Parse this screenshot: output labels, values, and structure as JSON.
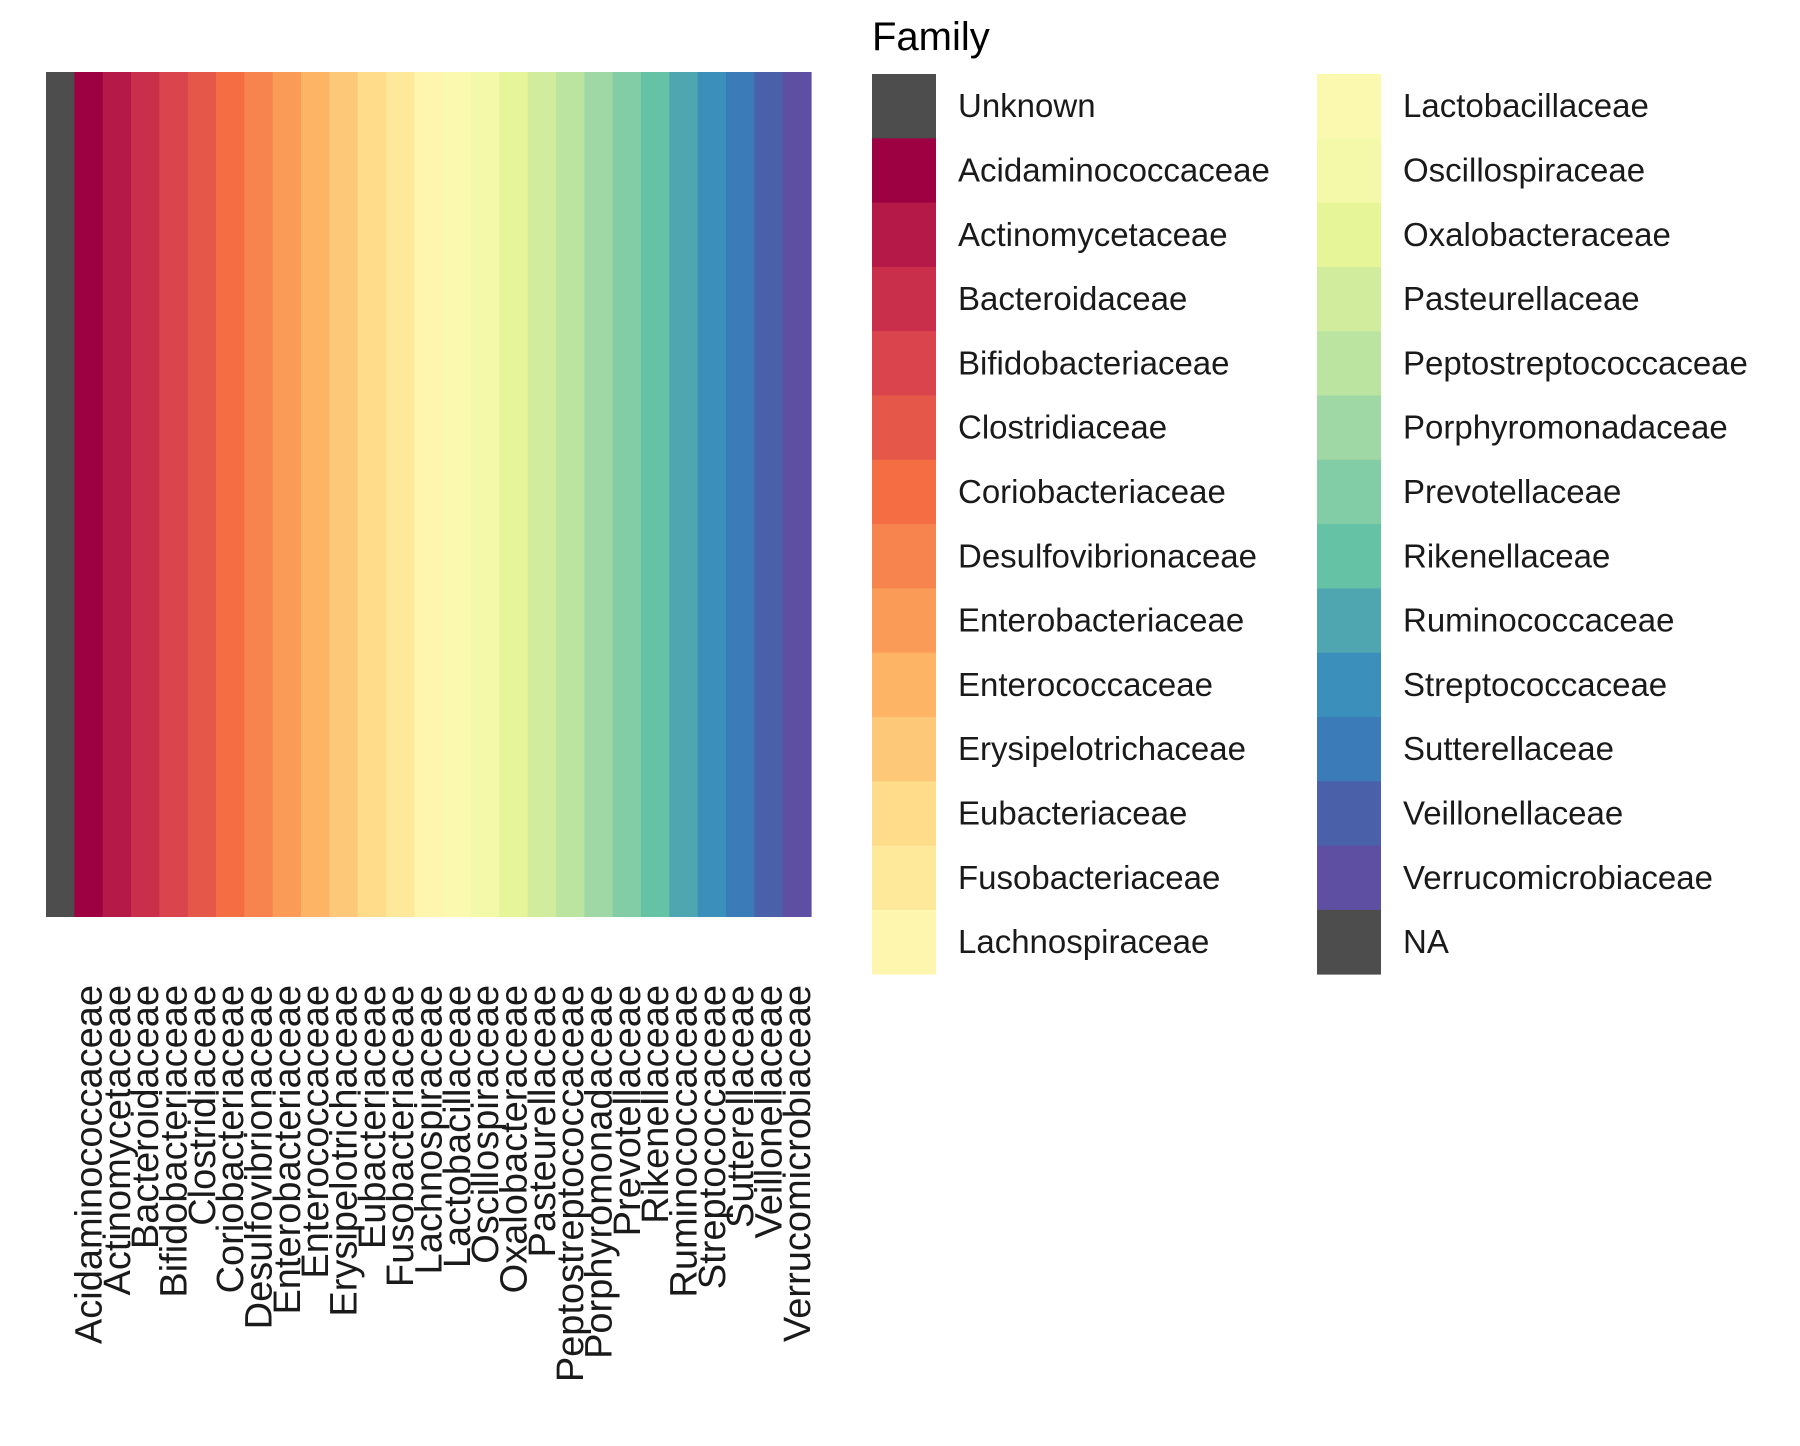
{
  "chart_data": {
    "type": "heatmap",
    "title": "",
    "xlabel": "",
    "ylabel": "",
    "grid": false,
    "legend_placement": "right",
    "legend_columns": 2,
    "x_tick_labels": [
      "Acidaminococcaceae",
      "Actinomycetaceae",
      "Bacteroidaceae",
      "Bifidobacteriaceae",
      "Clostridiaceae",
      "Coriobacteriaceae",
      "Desulfovibrionaceae",
      "Enterobacteriaceae",
      "Enterococcaceae",
      "Erysipelotrichaceae",
      "Eubacteriaceae",
      "Fusobacteriaceae",
      "Lachnospiraceae",
      "Lactobacillaceae",
      "Oscillospiraceae",
      "Oxalobacteraceae",
      "Pasteurellaceae",
      "Peptostreptococcaceae",
      "Porphyromonadaceae",
      "Prevotellaceae",
      "Rikenellaceae",
      "Ruminococcaceae",
      "Streptococcaceae",
      "Sutterellaceae",
      "Veillonellaceae",
      "Verrucomicrobiaceae"
    ],
    "tiles": [
      {
        "family": "Unknown",
        "color": "#4d4d4d"
      },
      {
        "family": "Acidaminococcaceae",
        "color": "#9e0142"
      },
      {
        "family": "Actinomycetaceae",
        "color": "#b41947"
      },
      {
        "family": "Bacteroidaceae",
        "color": "#c92e4a"
      },
      {
        "family": "Bifidobacteriaceae",
        "color": "#d9444d"
      },
      {
        "family": "Clostridiaceae",
        "color": "#e55749"
      },
      {
        "family": "Coriobacteriaceae",
        "color": "#f46d43"
      },
      {
        "family": "Desulfovibrionaceae",
        "color": "#f7844e"
      },
      {
        "family": "Enterobacteriaceae",
        "color": "#fa9b58"
      },
      {
        "family": "Enterococcaceae",
        "color": "#fdb465"
      },
      {
        "family": "Erysipelotrichaceae",
        "color": "#fdc877"
      },
      {
        "family": "Eubacteriaceae",
        "color": "#fedc8a"
      },
      {
        "family": "Fusobacteriaceae",
        "color": "#fee89a"
      },
      {
        "family": "Lachnospiraceae",
        "color": "#fef5af"
      },
      {
        "family": "Lactobacillaceae",
        "color": "#fbf9b0"
      },
      {
        "family": "Oscillospiraceae",
        "color": "#f3f9a9"
      },
      {
        "family": "Oxalobacteraceae",
        "color": "#e6f598"
      },
      {
        "family": "Pasteurellaceae",
        "color": "#d1ec9c"
      },
      {
        "family": "Peptostreptococcaceae",
        "color": "#bbe4a0"
      },
      {
        "family": "Porphyromonadaceae",
        "color": "#9fd8a4"
      },
      {
        "family": "Prevotellaceae",
        "color": "#82cda5"
      },
      {
        "family": "Rikenellaceae",
        "color": "#66c2a5"
      },
      {
        "family": "Ruminococcaceae",
        "color": "#4fa6b0"
      },
      {
        "family": "Streptococcaceae",
        "color": "#3b90bb"
      },
      {
        "family": "Sutterellaceae",
        "color": "#3a7bb8"
      },
      {
        "family": "Veillonellaceae",
        "color": "#4a60a9"
      },
      {
        "family": "Verrucomicrobiaceae",
        "color": "#5e4fa2"
      }
    ],
    "legend": {
      "title": "Family",
      "entries": [
        {
          "label": "Unknown",
          "color": "#4d4d4d"
        },
        {
          "label": "Acidaminococcaceae",
          "color": "#9e0142"
        },
        {
          "label": "Actinomycetaceae",
          "color": "#b41947"
        },
        {
          "label": "Bacteroidaceae",
          "color": "#c92e4a"
        },
        {
          "label": "Bifidobacteriaceae",
          "color": "#d9444d"
        },
        {
          "label": "Clostridiaceae",
          "color": "#e55749"
        },
        {
          "label": "Coriobacteriaceae",
          "color": "#f46d43"
        },
        {
          "label": "Desulfovibrionaceae",
          "color": "#f7844e"
        },
        {
          "label": "Enterobacteriaceae",
          "color": "#fa9b58"
        },
        {
          "label": "Enterococcaceae",
          "color": "#fdb465"
        },
        {
          "label": "Erysipelotrichaceae",
          "color": "#fdc877"
        },
        {
          "label": "Eubacteriaceae",
          "color": "#fedc8a"
        },
        {
          "label": "Fusobacteriaceae",
          "color": "#fee89a"
        },
        {
          "label": "Lachnospiraceae",
          "color": "#fef5af"
        },
        {
          "label": "Lactobacillaceae",
          "color": "#fbf9b0"
        },
        {
          "label": "Oscillospiraceae",
          "color": "#f3f9a9"
        },
        {
          "label": "Oxalobacteraceae",
          "color": "#e6f598"
        },
        {
          "label": "Pasteurellaceae",
          "color": "#d1ec9c"
        },
        {
          "label": "Peptostreptococcaceae",
          "color": "#bbe4a0"
        },
        {
          "label": "Porphyromonadaceae",
          "color": "#9fd8a4"
        },
        {
          "label": "Prevotellaceae",
          "color": "#82cda5"
        },
        {
          "label": "Rikenellaceae",
          "color": "#66c2a5"
        },
        {
          "label": "Ruminococcaceae",
          "color": "#4fa6b0"
        },
        {
          "label": "Streptococcaceae",
          "color": "#3b90bb"
        },
        {
          "label": "Sutterellaceae",
          "color": "#3a7bb8"
        },
        {
          "label": "Veillonellaceae",
          "color": "#4a60a9"
        },
        {
          "label": "Verrucomicrobiaceae",
          "color": "#5e4fa2"
        },
        {
          "label": "NA",
          "color": "#4d4d4d"
        }
      ]
    }
  }
}
